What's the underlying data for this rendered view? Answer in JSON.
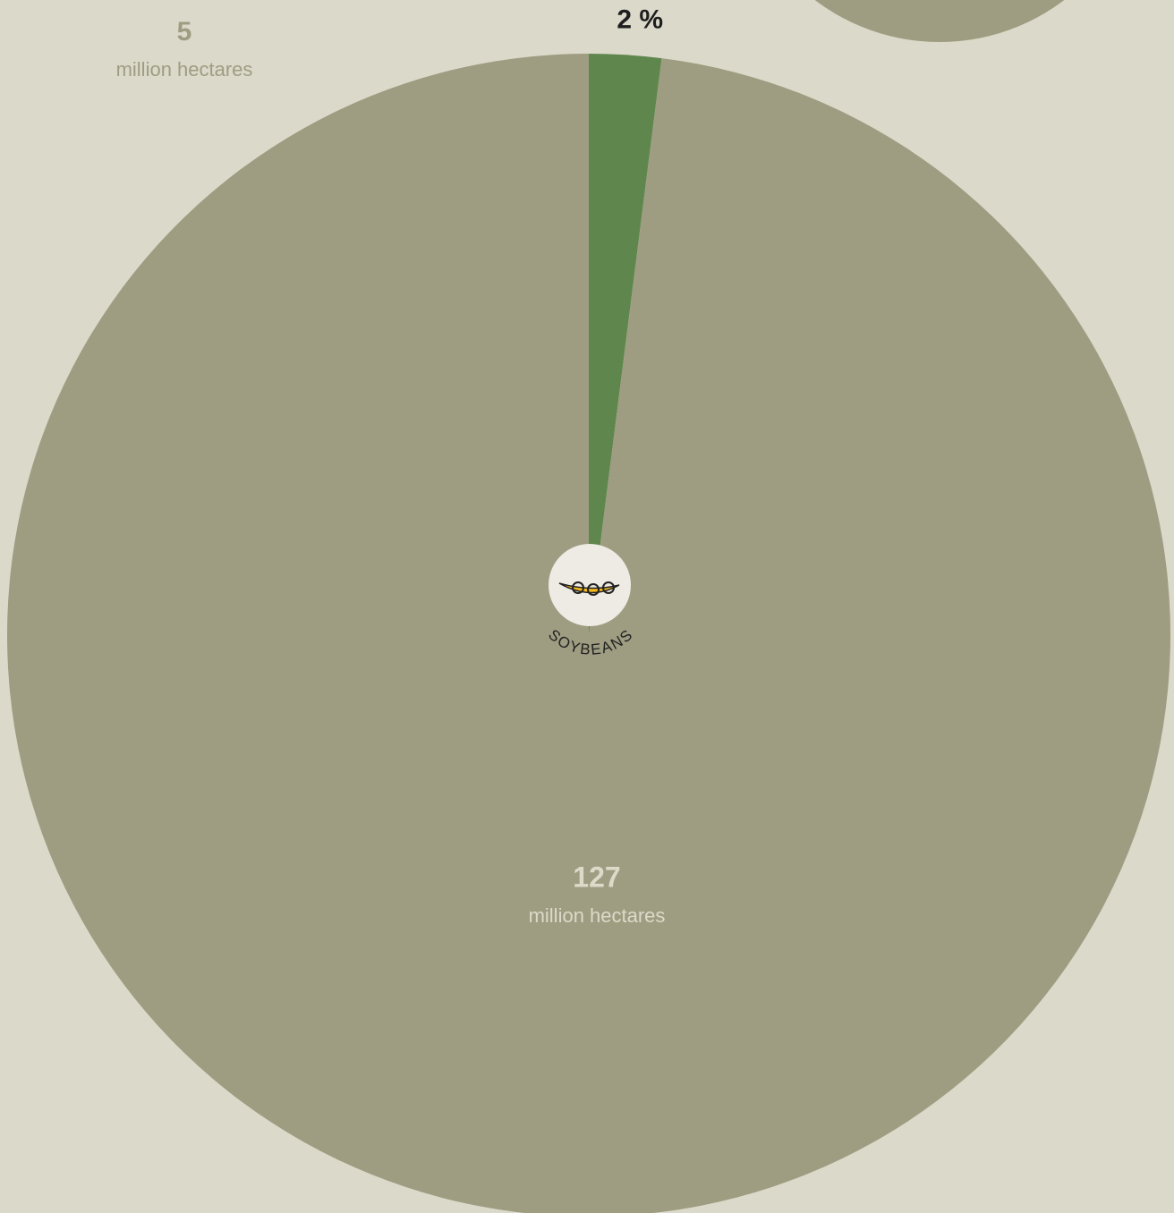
{
  "chart_data": {
    "type": "pie",
    "label": "SOYBEANS",
    "values": [
      2,
      98
    ],
    "value_labels": [
      "2 %",
      null
    ],
    "colors": [
      "#5f874d",
      "#9e9d82"
    ],
    "total": {
      "value": 127,
      "text": "million hectares"
    },
    "annotation": {
      "value": 5,
      "text": "million hectares"
    }
  }
}
